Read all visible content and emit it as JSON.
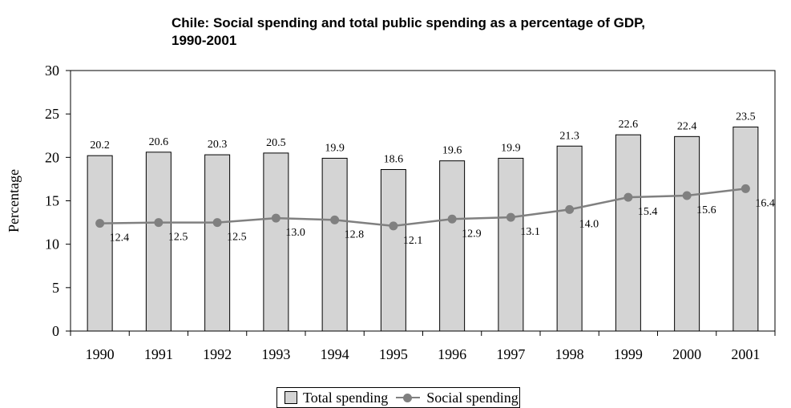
{
  "title_line1": "Chile: Social spending and total public spending as a percentage of GDP,",
  "title_line2": "1990-2001",
  "chart_data": {
    "type": "bar",
    "title": "Chile: Social spending and total public spending as a percentage of GDP, 1990-2001",
    "categories": [
      "1990",
      "1991",
      "1992",
      "1993",
      "1994",
      "1995",
      "1996",
      "1997",
      "1998",
      "1999",
      "2000",
      "2001"
    ],
    "series": [
      {
        "name": "Total spending",
        "type": "bar",
        "values": [
          20.2,
          20.6,
          20.3,
          20.5,
          19.9,
          18.6,
          19.6,
          19.9,
          21.3,
          22.6,
          22.4,
          23.5
        ],
        "labels": [
          "20.2",
          "20.6",
          "20.3",
          "20.5",
          "19.9",
          "18.6",
          "19.6",
          "19.9",
          "21.3",
          "22.6",
          "22.4",
          "23.5"
        ]
      },
      {
        "name": "Social spending",
        "type": "line",
        "values": [
          12.4,
          12.5,
          12.5,
          13.0,
          12.8,
          12.1,
          12.9,
          13.1,
          14.0,
          15.4,
          15.6,
          16.4
        ],
        "labels": [
          "12.4",
          "12.5",
          "12.5",
          "13.0",
          "12.8",
          "12.1",
          "12.9",
          "13.1",
          "14.0",
          "15.4",
          "15.6",
          "16.4"
        ]
      }
    ],
    "ylabel": "Percentage",
    "xlabel": "",
    "ylim": [
      0,
      30
    ],
    "yticks": [
      0,
      5,
      10,
      15,
      20,
      25,
      30
    ],
    "grid": false,
    "legend_position": "bottom",
    "colors": {
      "bar": "#d4d4d4",
      "line": "#808080"
    }
  }
}
